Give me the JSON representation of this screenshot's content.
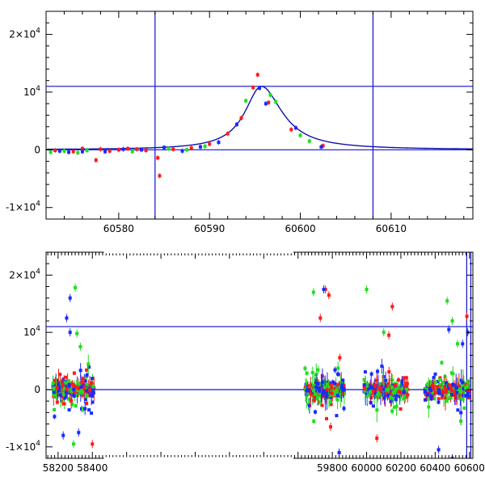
{
  "colors": {
    "axis": "#000000",
    "lines": "#1010d0",
    "series": [
      "#ff1a1a",
      "#22dd22",
      "#1a2aff"
    ]
  },
  "chart_data": [
    {
      "type": "scatter",
      "panel": "top",
      "title": "",
      "xlabel": "",
      "ylabel": "",
      "xlim": [
        60572,
        60619
      ],
      "ylim": [
        -12000,
        24000
      ],
      "x_ticks": [
        {
          "value": 60580,
          "label": "60580"
        },
        {
          "value": 60590,
          "label": "60590"
        },
        {
          "value": 60600,
          "label": "60600"
        },
        {
          "value": 60610,
          "label": "60610"
        }
      ],
      "y_ticks": [
        {
          "value": -10000,
          "label": "-1×10",
          "exp": "4"
        },
        {
          "value": 0,
          "label": "0",
          "exp": ""
        },
        {
          "value": 10000,
          "label": "10",
          "exp": "4"
        },
        {
          "value": 20000,
          "label": "2×10",
          "exp": "4"
        }
      ],
      "hlines": [
        0,
        11000
      ],
      "vlines": [
        60584,
        60608
      ],
      "model": {
        "t0": 60595.7,
        "peak": 11000,
        "rise_tau": 2.2,
        "fall_tau": 2.8
      },
      "series": [
        {
          "color": "red",
          "points": [
            [
              60573,
              -100
            ],
            [
              60575,
              -300
            ],
            [
              60576,
              200
            ],
            [
              60577.5,
              -1800
            ],
            [
              60578,
              100
            ],
            [
              60579,
              -200
            ],
            [
              60580,
              0
            ],
            [
              60581,
              200
            ],
            [
              60582,
              100
            ],
            [
              60583,
              -100
            ],
            [
              60584.5,
              -4500
            ],
            [
              60584.3,
              -1400
            ],
            [
              60586,
              100
            ],
            [
              60588,
              300
            ],
            [
              60590,
              1000
            ],
            [
              60592,
              2800
            ],
            [
              60593.5,
              5500
            ],
            [
              60594.8,
              10800
            ],
            [
              60595.3,
              13000
            ],
            [
              60596.5,
              8200
            ],
            [
              60599,
              3500
            ],
            [
              60602.5,
              700
            ]
          ]
        },
        {
          "color": "green",
          "points": [
            [
              60572.5,
              -400
            ],
            [
              60574,
              -200
            ],
            [
              60575.5,
              -500
            ],
            [
              60576.5,
              -100
            ],
            [
              60581.5,
              -300
            ],
            [
              60585.5,
              200
            ],
            [
              60587.5,
              0
            ],
            [
              60589.5,
              600
            ],
            [
              60594,
              8500
            ],
            [
              60596.7,
              9500
            ],
            [
              60597.3,
              8300
            ],
            [
              60600,
              2500
            ],
            [
              60601,
              1500
            ]
          ]
        },
        {
          "color": "blue",
          "points": [
            [
              60573.5,
              -200
            ],
            [
              60574.5,
              -400
            ],
            [
              60576,
              -300
            ],
            [
              60578.5,
              -300
            ],
            [
              60580.5,
              100
            ],
            [
              60582.5,
              0
            ],
            [
              60585,
              400
            ],
            [
              60587,
              -200
            ],
            [
              60589,
              500
            ],
            [
              60591,
              1300
            ],
            [
              60593,
              4400
            ],
            [
              60595.5,
              10700
            ],
            [
              60596.2,
              8000
            ],
            [
              60599.5,
              3800
            ],
            [
              60602.3,
              500
            ]
          ]
        }
      ]
    },
    {
      "type": "scatter",
      "panel": "bottom",
      "title": "",
      "xlabel": "",
      "ylabel": "",
      "xlim": [
        58130,
        60620
      ],
      "ylim": [
        -12000,
        24000
      ],
      "x_ticks": [
        {
          "value": 58200,
          "label": "58200"
        },
        {
          "value": 58400,
          "label": "58400"
        },
        {
          "value": 59800,
          "label": "59800"
        },
        {
          "value": 60000,
          "label": "60000"
        },
        {
          "value": 60200,
          "label": "60200"
        },
        {
          "value": 60400,
          "label": "60400"
        },
        {
          "value": 60600,
          "label": "60600"
        }
      ],
      "axis_break": {
        "after": 58420,
        "resume": 59620
      },
      "y_ticks": [
        {
          "value": -10000,
          "label": "-1×10",
          "exp": "4"
        },
        {
          "value": 0,
          "label": "0",
          "exp": ""
        },
        {
          "value": 10000,
          "label": "10",
          "exp": "4"
        },
        {
          "value": 20000,
          "label": "2×10",
          "exp": "4"
        }
      ],
      "hlines": [
        0,
        11000
      ],
      "vlines": [
        60584,
        60608
      ],
      "seasons": [
        [
          58170,
          58410
        ],
        [
          59640,
          59870
        ],
        [
          59985,
          60240
        ],
        [
          60340,
          60600
        ]
      ],
      "outliers": {
        "red": [
          [
            58400,
            -9500
          ],
          [
            59760,
            17500
          ],
          [
            59780,
            16500
          ],
          [
            59730,
            12500
          ],
          [
            60150,
            14500
          ],
          [
            60130,
            9500
          ],
          [
            60585,
            12800
          ],
          [
            59790,
            -6500
          ],
          [
            60060,
            -8500
          ]
        ],
        "green": [
          [
            58300,
            17800
          ],
          [
            58310,
            9800
          ],
          [
            58330,
            7500
          ],
          [
            58290,
            -9500
          ],
          [
            59690,
            17000
          ],
          [
            60000,
            17500
          ],
          [
            60100,
            10000
          ],
          [
            60470,
            15500
          ],
          [
            60500,
            12000
          ],
          [
            60530,
            8000
          ],
          [
            60550,
            -5500
          ]
        ],
        "blue": [
          [
            58250,
            12500
          ],
          [
            58270,
            16000
          ],
          [
            58270,
            10000
          ],
          [
            58230,
            -8000
          ],
          [
            58320,
            -7500
          ],
          [
            59750,
            17500
          ],
          [
            59840,
            -11000
          ],
          [
            60480,
            10500
          ],
          [
            60560,
            8000
          ],
          [
            60500,
            -12000
          ],
          [
            60420,
            -10500
          ],
          [
            60590,
            10000
          ]
        ]
      }
    }
  ]
}
